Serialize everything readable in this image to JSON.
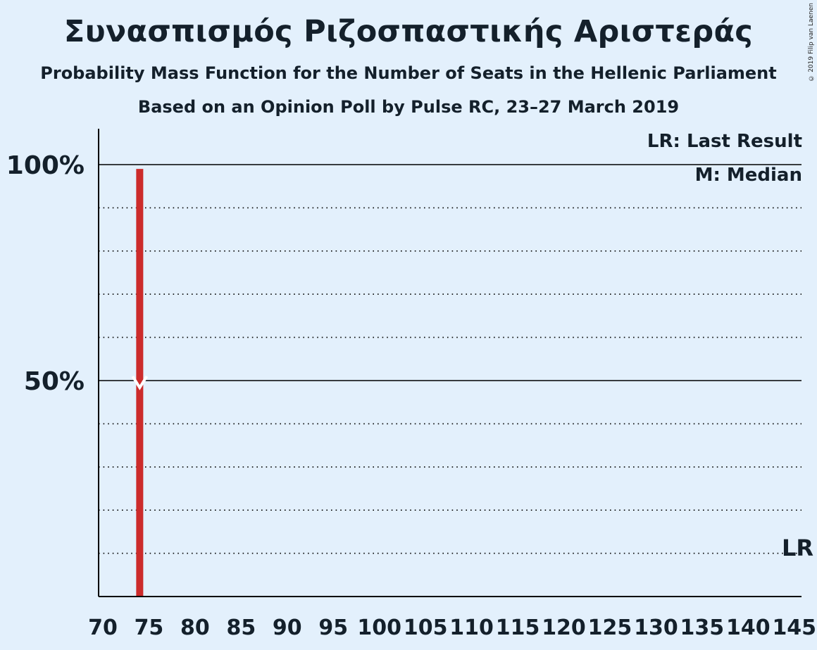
{
  "title": "Συνασπισμός Ριζοσπαστικής Αριστεράς",
  "subtitle1": "Probability Mass Function for the Number of Seats in the Hellenic Parliament",
  "subtitle2": "Based on an Opinion Poll by Pulse RC, 23–27 March 2019",
  "copyright": "© 2019 Filip van Laenen",
  "chart_data": {
    "type": "bar",
    "xlabel": "",
    "ylabel": "",
    "xlim": [
      70,
      145
    ],
    "ylim": [
      0,
      100
    ],
    "x_ticks": [
      70,
      75,
      80,
      85,
      90,
      95,
      100,
      105,
      110,
      115,
      120,
      125,
      130,
      135,
      140,
      145
    ],
    "y_ticks": [
      {
        "value": 50,
        "label": "50%"
      },
      {
        "value": 100,
        "label": "100%"
      }
    ],
    "bars": [
      {
        "x": 74,
        "value": 99,
        "color": "#cc2b2b"
      }
    ],
    "median": {
      "x": 74,
      "marker": "M"
    },
    "last_result": {
      "x": 145,
      "marker": "LR"
    },
    "legend": [
      {
        "label": "LR: Last Result"
      },
      {
        "label": "M: Median"
      }
    ],
    "legend_position": "top-right",
    "grid": "dotted every 10%",
    "colors": {
      "bar": "#cc2b2b",
      "background": "#e3f0fc",
      "axis": "#000000"
    }
  }
}
